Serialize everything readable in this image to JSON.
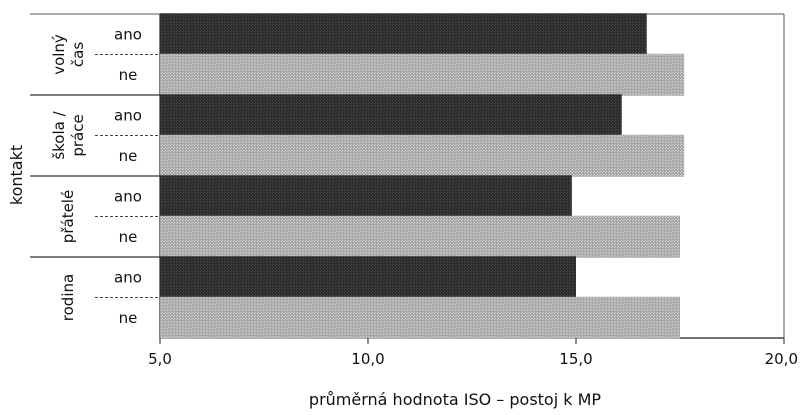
{
  "chart_data": {
    "type": "bar",
    "orientation": "horizontal",
    "xlabel": "průměrná hodnota ISO – postoj k MP",
    "ylabel": "kontakt",
    "xlim": [
      5,
      20
    ],
    "xticks": [
      "5,0",
      "10,0",
      "15,0",
      "20,0"
    ],
    "groups": [
      {
        "label": "volný čas",
        "label_lines": [
          "volný",
          "čas"
        ],
        "bars": [
          {
            "label": "ano",
            "value": 16.7
          },
          {
            "label": "ne",
            "value": 17.6
          }
        ]
      },
      {
        "label": "škola / práce",
        "label_lines": [
          "škola /",
          "práce"
        ],
        "bars": [
          {
            "label": "ano",
            "value": 16.1
          },
          {
            "label": "ne",
            "value": 17.6
          }
        ]
      },
      {
        "label": "přátelé",
        "label_lines": [
          "přátelé"
        ],
        "bars": [
          {
            "label": "ano",
            "value": 14.9
          },
          {
            "label": "ne",
            "value": 17.5
          }
        ]
      },
      {
        "label": "rodina",
        "label_lines": [
          "rodina"
        ],
        "bars": [
          {
            "label": "ano",
            "value": 15.0
          },
          {
            "label": "ne",
            "value": 17.5
          }
        ]
      }
    ],
    "colors": {
      "ano": "#2b2b2b",
      "ne": "#a8a8a8"
    },
    "grid": false
  }
}
